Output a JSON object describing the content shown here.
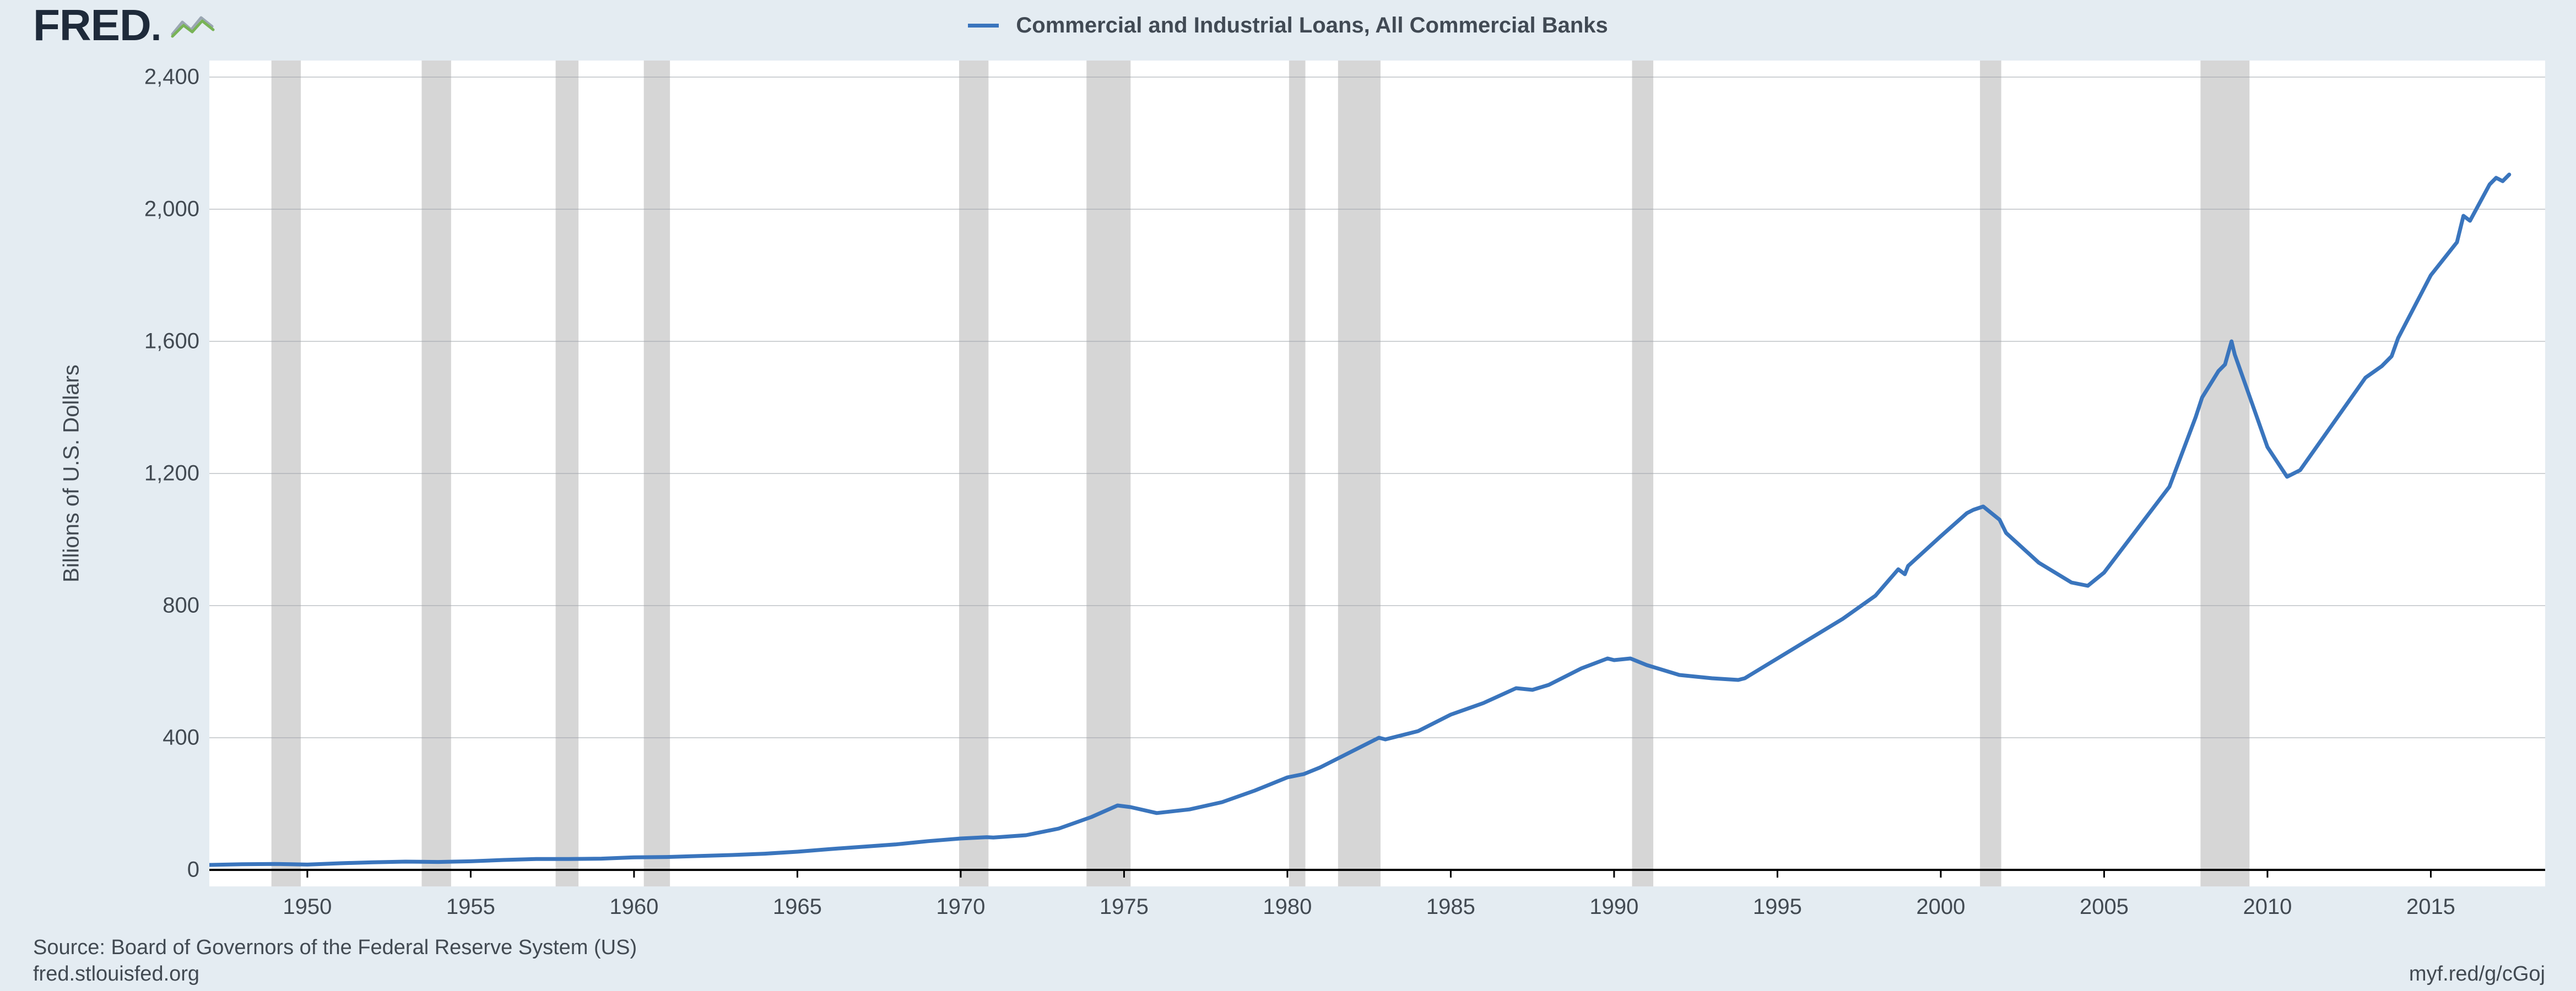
{
  "logo": {
    "text": "FRED",
    "dot_suffix": "."
  },
  "legend": {
    "label": "Commercial and Industrial Loans, All Commercial Banks",
    "color": "#3a75bd"
  },
  "chart": {
    "type": "line",
    "background_color": "#ffffff",
    "page_background_color": "#e4ecf2",
    "grid_color": "#9da3a9",
    "grid_width": 1,
    "axis_color": "#000000",
    "line_color": "#3a75bd",
    "line_width": 7,
    "label_fontsize": 40,
    "label_color": "#424a52",
    "ylabel": "Billions of U.S. Dollars",
    "ylim": [
      -50,
      2450
    ],
    "ytick_step": 400,
    "yticks": [
      0,
      400,
      800,
      1200,
      1600,
      2000,
      2400
    ],
    "ytick_labels": [
      "0",
      "400",
      "800",
      "1,200",
      "1,600",
      "2,000",
      "2,400"
    ],
    "xlim": [
      1947,
      2018.5
    ],
    "xticks": [
      1950,
      1955,
      1960,
      1965,
      1970,
      1975,
      1980,
      1985,
      1990,
      1995,
      2000,
      2005,
      2010,
      2015
    ],
    "xtick_labels": [
      "1950",
      "1955",
      "1960",
      "1965",
      "1970",
      "1975",
      "1980",
      "1985",
      "1990",
      "1995",
      "2000",
      "2005",
      "2010",
      "2015"
    ],
    "recession_color": "#d6d6d6",
    "recessions": [
      [
        1948.9,
        1949.8
      ],
      [
        1953.5,
        1954.4
      ],
      [
        1957.6,
        1958.3
      ],
      [
        1960.3,
        1961.1
      ],
      [
        1969.95,
        1970.85
      ],
      [
        1973.85,
        1975.2
      ],
      [
        1980.05,
        1980.55
      ],
      [
        1981.55,
        1982.85
      ],
      [
        1990.55,
        1991.2
      ],
      [
        2001.2,
        2001.85
      ],
      [
        2007.95,
        2009.45
      ]
    ],
    "series": [
      [
        1947.0,
        15
      ],
      [
        1948.0,
        17
      ],
      [
        1949.0,
        18
      ],
      [
        1949.5,
        17
      ],
      [
        1950.0,
        16
      ],
      [
        1951.0,
        20
      ],
      [
        1952.0,
        23
      ],
      [
        1953.0,
        25
      ],
      [
        1954.0,
        24
      ],
      [
        1955.0,
        26
      ],
      [
        1956.0,
        30
      ],
      [
        1957.0,
        33
      ],
      [
        1958.0,
        33
      ],
      [
        1959.0,
        34
      ],
      [
        1960.0,
        38
      ],
      [
        1961.0,
        39
      ],
      [
        1962.0,
        42
      ],
      [
        1963.0,
        45
      ],
      [
        1964.0,
        49
      ],
      [
        1965.0,
        55
      ],
      [
        1966.0,
        63
      ],
      [
        1967.0,
        70
      ],
      [
        1968.0,
        77
      ],
      [
        1969.0,
        87
      ],
      [
        1970.0,
        95
      ],
      [
        1970.8,
        99
      ],
      [
        1971.0,
        98
      ],
      [
        1972.0,
        105
      ],
      [
        1973.0,
        125
      ],
      [
        1974.0,
        160
      ],
      [
        1974.8,
        195
      ],
      [
        1975.2,
        190
      ],
      [
        1976.0,
        172
      ],
      [
        1977.0,
        183
      ],
      [
        1978.0,
        205
      ],
      [
        1979.0,
        240
      ],
      [
        1980.0,
        280
      ],
      [
        1980.5,
        290
      ],
      [
        1981.0,
        310
      ],
      [
        1982.0,
        360
      ],
      [
        1982.8,
        400
      ],
      [
        1983.0,
        395
      ],
      [
        1984.0,
        420
      ],
      [
        1985.0,
        470
      ],
      [
        1986.0,
        505
      ],
      [
        1987.0,
        550
      ],
      [
        1987.5,
        545
      ],
      [
        1988.0,
        560
      ],
      [
        1989.0,
        610
      ],
      [
        1989.8,
        640
      ],
      [
        1990.0,
        635
      ],
      [
        1990.5,
        640
      ],
      [
        1991.0,
        620
      ],
      [
        1992.0,
        590
      ],
      [
        1993.0,
        580
      ],
      [
        1993.8,
        575
      ],
      [
        1994.0,
        580
      ],
      [
        1995.0,
        640
      ],
      [
        1996.0,
        700
      ],
      [
        1997.0,
        760
      ],
      [
        1998.0,
        830
      ],
      [
        1998.7,
        910
      ],
      [
        1998.9,
        895
      ],
      [
        1999.0,
        920
      ],
      [
        2000.0,
        1010
      ],
      [
        2000.8,
        1080
      ],
      [
        2001.0,
        1090
      ],
      [
        2001.3,
        1100
      ],
      [
        2001.8,
        1060
      ],
      [
        2002.0,
        1020
      ],
      [
        2003.0,
        930
      ],
      [
        2004.0,
        870
      ],
      [
        2004.5,
        860
      ],
      [
        2005.0,
        900
      ],
      [
        2006.0,
        1030
      ],
      [
        2007.0,
        1160
      ],
      [
        2007.8,
        1370
      ],
      [
        2008.0,
        1430
      ],
      [
        2008.5,
        1510
      ],
      [
        2008.7,
        1530
      ],
      [
        2008.9,
        1600
      ],
      [
        2009.0,
        1560
      ],
      [
        2009.5,
        1420
      ],
      [
        2010.0,
        1280
      ],
      [
        2010.6,
        1190
      ],
      [
        2011.0,
        1210
      ],
      [
        2012.0,
        1350
      ],
      [
        2013.0,
        1490
      ],
      [
        2013.5,
        1525
      ],
      [
        2013.8,
        1555
      ],
      [
        2014.0,
        1610
      ],
      [
        2015.0,
        1800
      ],
      [
        2015.8,
        1900
      ],
      [
        2016.0,
        1980
      ],
      [
        2016.2,
        1965
      ],
      [
        2016.8,
        2075
      ],
      [
        2017.0,
        2095
      ],
      [
        2017.2,
        2085
      ],
      [
        2017.4,
        2105
      ]
    ]
  },
  "footer": {
    "source": "Source: Board of Governors of the Federal Reserve System (US)",
    "site": "fred.stlouisfed.org",
    "shortlink": "myf.red/g/cGoj"
  }
}
